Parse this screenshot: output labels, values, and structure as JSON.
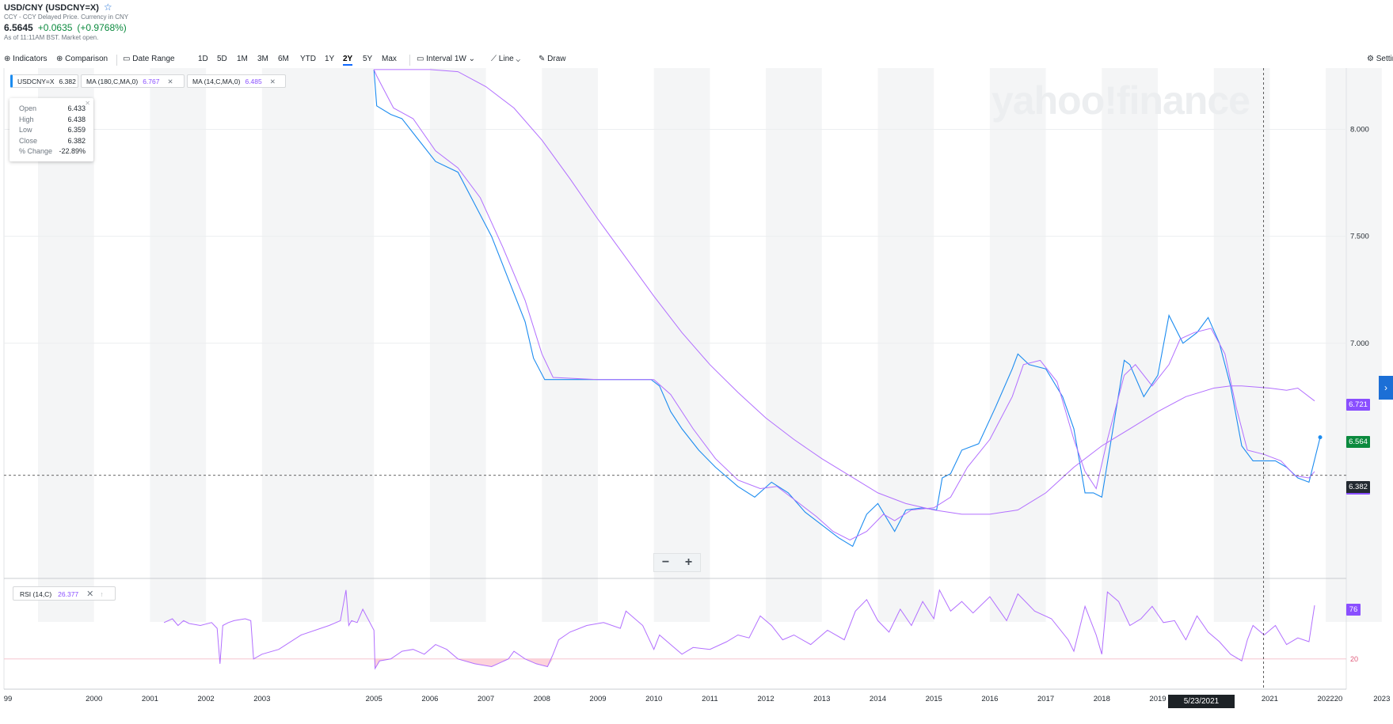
{
  "header": {
    "title": "USD/CNY (USDCNY=X)",
    "subtitle": "CCY - CCY Delayed Price. Currency in CNY",
    "price": "6.5645",
    "change": "+0.0635",
    "change_pct": "(+0.9768%)",
    "asof": "As of 11:11AM BST. Market open."
  },
  "toolbar": {
    "indicators": "Indicators",
    "comparison": "Comparison",
    "date_range": "Date Range",
    "ranges": [
      "1D",
      "5D",
      "1M",
      "3M",
      "6M",
      "YTD",
      "1Y",
      "2Y",
      "5Y",
      "Max"
    ],
    "selected_range": "2Y",
    "interval": "Interval",
    "interval_value": "1W",
    "chart_type": "Line",
    "draw": "Draw",
    "settings": "Settings"
  },
  "legend": {
    "symbol": "USDCNY=X",
    "symbol_value": "6.382",
    "ma180": "MA (180,C,MA,0)",
    "ma180_value": "6.767",
    "ma14": "MA (14,C,MA,0)",
    "ma14_value": "6.485"
  },
  "ohlc": {
    "open_label": "Open",
    "open": "6.433",
    "high_label": "High",
    "high": "6.438",
    "low_label": "Low",
    "low": "6.359",
    "close_label": "Close",
    "close": "6.382",
    "pct_label": "% Change",
    "pct": "-22.89%"
  },
  "rsi": {
    "label": "RSI (14,C)",
    "value": "26.377",
    "badge": "76",
    "level_low": "20"
  },
  "watermark": "yahoo!finance",
  "badges": {
    "ma180": "6.721",
    "price": "6.564",
    "crosshair": "6.382"
  },
  "crosshair_date": "5/23/2021",
  "colors": {
    "price": "#1c8cf0",
    "ma": "#b26fff",
    "up": "#0b8a3e",
    "crosshair_badge": "#232a31",
    "ma_badge": "#8a4fff"
  },
  "chart_data": {
    "type": "line",
    "ylim": [
      5.9,
      8.25
    ],
    "x_ticks": [
      "99",
      "2000",
      "2001",
      "2002",
      "2003",
      "2005",
      "2006",
      "2007",
      "2008",
      "2009",
      "2010",
      "2011",
      "2012",
      "2013",
      "2014",
      "2015",
      "2016",
      "2017",
      "2018",
      "2019",
      "2020",
      "2021",
      "2022",
      "2023",
      "20"
    ],
    "y_ticks": [
      "8.000",
      "7.500",
      "7.000"
    ],
    "series": [
      {
        "name": "USDCNY=X",
        "x": [
          2005.5,
          2005.55,
          2005.8,
          2006.0,
          2006.3,
          2006.6,
          2007.0,
          2007.3,
          2007.6,
          2007.9,
          2008.2,
          2008.35,
          2008.55,
          2008.7,
          2009.0,
          2009.5,
          2010.0,
          2010.45,
          2010.6,
          2010.8,
          2011.0,
          2011.3,
          2011.6,
          2012.0,
          2012.3,
          2012.6,
          2012.9,
          2013.2,
          2013.5,
          2013.8,
          2014.05,
          2014.3,
          2014.5,
          2014.8,
          2015.0,
          2015.3,
          2015.55,
          2015.65,
          2015.8,
          2016.0,
          2016.3,
          2016.6,
          2016.9,
          2017.0,
          2017.2,
          2017.5,
          2017.8,
          2018.0,
          2018.2,
          2018.35,
          2018.5,
          2018.7,
          2018.9,
          2019.0,
          2019.25,
          2019.5,
          2019.7,
          2019.95,
          2020.2,
          2020.4,
          2020.6,
          2020.8,
          2021.0,
          2021.2,
          2021.4,
          2021.6,
          2021.8,
          2022.0,
          2022.2,
          2022.4
        ],
        "values": [
          8.28,
          8.11,
          8.07,
          8.05,
          7.95,
          7.85,
          7.8,
          7.65,
          7.5,
          7.3,
          7.1,
          6.93,
          6.83,
          6.83,
          6.83,
          6.83,
          6.83,
          6.83,
          6.8,
          6.68,
          6.6,
          6.5,
          6.42,
          6.33,
          6.28,
          6.35,
          6.3,
          6.21,
          6.15,
          6.09,
          6.05,
          6.2,
          6.25,
          6.12,
          6.22,
          6.23,
          6.22,
          6.37,
          6.39,
          6.5,
          6.53,
          6.7,
          6.88,
          6.95,
          6.9,
          6.88,
          6.75,
          6.6,
          6.3,
          6.3,
          6.28,
          6.6,
          6.92,
          6.9,
          6.75,
          6.85,
          7.13,
          7.0,
          7.05,
          7.12,
          7.0,
          6.8,
          6.52,
          6.45,
          6.45,
          6.45,
          6.42,
          6.37,
          6.35,
          6.56
        ]
      },
      {
        "name": "MA (14,C,MA,0)",
        "x": [
          2005.5,
          2005.55,
          2005.85,
          2006.2,
          2006.6,
          2007.0,
          2007.4,
          2007.8,
          2008.2,
          2008.5,
          2008.7,
          2009.5,
          2010.5,
          2010.8,
          2011.2,
          2011.6,
          2012.0,
          2012.4,
          2012.7,
          2013.0,
          2013.4,
          2013.7,
          2014.0,
          2014.3,
          2014.6,
          2014.8,
          2015.1,
          2015.5,
          2015.8,
          2016.1,
          2016.5,
          2016.9,
          2017.1,
          2017.4,
          2017.7,
          2018.0,
          2018.2,
          2018.4,
          2018.6,
          2018.9,
          2019.1,
          2019.4,
          2019.7,
          2019.9,
          2020.15,
          2020.45,
          2020.7,
          2020.9,
          2021.1,
          2021.4,
          2021.7,
          2021.95,
          2022.2,
          2022.3
        ],
        "values": [
          8.28,
          8.25,
          8.1,
          8.05,
          7.9,
          7.82,
          7.68,
          7.45,
          7.2,
          6.95,
          6.84,
          6.83,
          6.83,
          6.76,
          6.6,
          6.46,
          6.36,
          6.32,
          6.33,
          6.27,
          6.19,
          6.12,
          6.08,
          6.12,
          6.2,
          6.17,
          6.22,
          6.23,
          6.28,
          6.42,
          6.55,
          6.75,
          6.9,
          6.92,
          6.82,
          6.55,
          6.4,
          6.32,
          6.55,
          6.85,
          6.9,
          6.8,
          6.9,
          7.02,
          7.05,
          7.07,
          6.95,
          6.7,
          6.5,
          6.48,
          6.45,
          6.38,
          6.37,
          6.4
        ]
      },
      {
        "name": "MA (180,C,MA,0)",
        "x": [
          2005.5,
          2006.0,
          2006.5,
          2007.0,
          2007.5,
          2008.0,
          2008.5,
          2009.0,
          2009.5,
          2010.0,
          2010.5,
          2011.0,
          2011.5,
          2012.0,
          2012.5,
          2013.0,
          2013.5,
          2014.0,
          2014.5,
          2015.0,
          2015.5,
          2016.0,
          2016.5,
          2017.0,
          2017.5,
          2018.0,
          2018.5,
          2019.0,
          2019.5,
          2020.0,
          2020.5,
          2020.8,
          2021.0,
          2021.5,
          2021.8,
          2022.0,
          2022.3
        ],
        "values": [
          8.28,
          8.28,
          8.28,
          8.27,
          8.2,
          8.1,
          7.95,
          7.77,
          7.58,
          7.4,
          7.22,
          7.05,
          6.9,
          6.77,
          6.65,
          6.55,
          6.46,
          6.38,
          6.3,
          6.25,
          6.22,
          6.2,
          6.2,
          6.22,
          6.3,
          6.42,
          6.52,
          6.6,
          6.68,
          6.75,
          6.79,
          6.8,
          6.8,
          6.79,
          6.78,
          6.79,
          6.73
        ]
      }
    ]
  },
  "rsi_data": {
    "ylim": [
      0,
      100
    ],
    "low_level": 20,
    "x": [
      2001.75,
      2001.9,
      2002.0,
      2002.1,
      2002.2,
      2002.4,
      2002.6,
      2002.7,
      2002.75,
      2002.8,
      2002.9,
      2003.0,
      2003.2,
      2003.3,
      2003.35,
      2003.5,
      2003.8,
      2004.2,
      2004.7,
      2004.9,
      2005.0,
      2005.05,
      2005.1,
      2005.2,
      2005.3,
      2005.5,
      2005.52,
      2005.6,
      2005.8,
      2006.0,
      2006.2,
      2006.4,
      2006.6,
      2006.8,
      2007.0,
      2007.3,
      2007.6,
      2007.9,
      2008.0,
      2008.2,
      2008.4,
      2008.6,
      2008.7,
      2008.8,
      2009.0,
      2009.3,
      2009.6,
      2009.9,
      2010.0,
      2010.3,
      2010.5,
      2010.6,
      2010.8,
      2011.0,
      2011.2,
      2011.5,
      2011.8,
      2012.0,
      2012.2,
      2012.4,
      2012.6,
      2012.8,
      2013.0,
      2013.3,
      2013.6,
      2013.9,
      2014.1,
      2014.3,
      2014.5,
      2014.7,
      2014.9,
      2015.1,
      2015.3,
      2015.5,
      2015.6,
      2015.8,
      2016.0,
      2016.2,
      2016.5,
      2016.8,
      2017.0,
      2017.3,
      2017.6,
      2017.9,
      2018.0,
      2018.2,
      2018.4,
      2018.5,
      2018.6,
      2018.8,
      2019.0,
      2019.2,
      2019.4,
      2019.6,
      2019.8,
      2020.0,
      2020.2,
      2020.4,
      2020.6,
      2020.8,
      2021.0,
      2021.1,
      2021.2,
      2021.4,
      2021.6,
      2021.8,
      2022.0,
      2022.2,
      2022.3
    ],
    "values": [
      58,
      62,
      55,
      60,
      57,
      55,
      58,
      52,
      15,
      55,
      58,
      60,
      62,
      60,
      20,
      25,
      30,
      45,
      55,
      60,
      92,
      55,
      60,
      58,
      72,
      50,
      10,
      18,
      20,
      28,
      30,
      25,
      35,
      30,
      20,
      15,
      12,
      20,
      28,
      20,
      15,
      12,
      25,
      40,
      48,
      55,
      58,
      52,
      70,
      55,
      30,
      45,
      35,
      25,
      32,
      30,
      38,
      45,
      42,
      65,
      55,
      40,
      45,
      35,
      50,
      40,
      70,
      82,
      60,
      48,
      72,
      55,
      80,
      62,
      92,
      70,
      80,
      68,
      85,
      60,
      88,
      70,
      62,
      40,
      28,
      75,
      45,
      25,
      90,
      80,
      55,
      62,
      75,
      58,
      60,
      40,
      65,
      48,
      38,
      25,
      18,
      40,
      55,
      45,
      55,
      35,
      42,
      38,
      76
    ]
  },
  "crosshair": {
    "x": 2021.39,
    "y": 6.382
  }
}
